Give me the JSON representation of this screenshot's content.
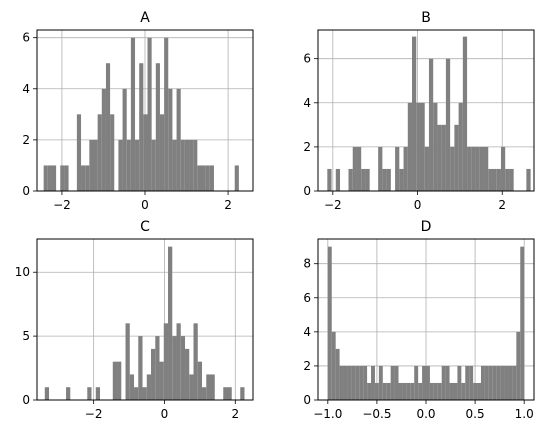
{
  "chart_data": [
    {
      "type": "bar",
      "title": "A",
      "xlim": [
        -2.6,
        2.6
      ],
      "ylim": [
        0,
        6.3
      ],
      "xticks": [
        -2,
        0,
        2
      ],
      "yticks": [
        0,
        2,
        4,
        6
      ],
      "grid": true,
      "bin_edges": [
        -2.44,
        -2.34,
        -2.24,
        -2.14,
        -2.04,
        -1.94,
        -1.84,
        -1.74,
        -1.64,
        -1.54,
        -1.44,
        -1.34,
        -1.24,
        -1.14,
        -1.04,
        -0.94,
        -0.84,
        -0.74,
        -0.64,
        -0.54,
        -0.44,
        -0.34,
        -0.24,
        -0.14,
        -0.04,
        0.06,
        0.16,
        0.26,
        0.36,
        0.46,
        0.56,
        0.66,
        0.76,
        0.86,
        0.96,
        1.06,
        1.16,
        1.26,
        1.36,
        1.46,
        1.56,
        1.66,
        1.76,
        1.86,
        1.96,
        2.06,
        2.16,
        2.26,
        2.36
      ],
      "counts": [
        1,
        1,
        1,
        0,
        1,
        1,
        0,
        0,
        3,
        1,
        1,
        2,
        2,
        3,
        4,
        5,
        3,
        0,
        2,
        4,
        2,
        6,
        2,
        5,
        3,
        6,
        2,
        5,
        3,
        6,
        4,
        2,
        4,
        2,
        2,
        2,
        2,
        1,
        1,
        1,
        1,
        0,
        0,
        0,
        0,
        0,
        1,
        0
      ]
    },
    {
      "type": "bar",
      "title": "B",
      "xlim": [
        -2.35,
        2.75
      ],
      "ylim": [
        0,
        7.3
      ],
      "xticks": [
        -2,
        0,
        2
      ],
      "yticks": [
        0,
        2,
        4,
        6
      ],
      "grid": true,
      "bin_edges": [
        -2.13,
        -2.03,
        -1.93,
        -1.83,
        -1.73,
        -1.63,
        -1.53,
        -1.43,
        -1.33,
        -1.23,
        -1.13,
        -1.03,
        -0.93,
        -0.83,
        -0.73,
        -0.63,
        -0.53,
        -0.43,
        -0.33,
        -0.23,
        -0.13,
        -0.03,
        0.07,
        0.17,
        0.27,
        0.37,
        0.47,
        0.57,
        0.67,
        0.77,
        0.87,
        0.97,
        1.07,
        1.17,
        1.27,
        1.37,
        1.47,
        1.57,
        1.67,
        1.77,
        1.87,
        1.97,
        2.07,
        2.17,
        2.27,
        2.37,
        2.47,
        2.57,
        2.67
      ],
      "counts": [
        1,
        0,
        1,
        0,
        0,
        1,
        2,
        2,
        1,
        1,
        0,
        0,
        2,
        1,
        1,
        0,
        2,
        1,
        2,
        4,
        7,
        4,
        4,
        2,
        6,
        4,
        3,
        3,
        6,
        2,
        3,
        4,
        7,
        2,
        2,
        2,
        2,
        2,
        1,
        1,
        1,
        2,
        1,
        1,
        0,
        0,
        0,
        1
      ]
    },
    {
      "type": "bar",
      "title": "C",
      "xlim": [
        -3.6,
        2.5
      ],
      "ylim": [
        0,
        12.6
      ],
      "xticks": [
        -2,
        0,
        2
      ],
      "yticks": [
        0,
        5,
        10
      ],
      "grid": true,
      "bin_edges": [
        -3.38,
        -3.26,
        -3.14,
        -3.02,
        -2.9,
        -2.78,
        -2.66,
        -2.54,
        -2.42,
        -2.3,
        -2.18,
        -2.06,
        -1.94,
        -1.82,
        -1.7,
        -1.58,
        -1.46,
        -1.34,
        -1.22,
        -1.1,
        -0.98,
        -0.86,
        -0.74,
        -0.62,
        -0.5,
        -0.38,
        -0.26,
        -0.14,
        -0.02,
        0.1,
        0.22,
        0.34,
        0.46,
        0.58,
        0.7,
        0.82,
        0.94,
        1.06,
        1.18,
        1.3,
        1.42,
        1.54,
        1.66,
        1.78,
        1.9,
        2.02,
        2.14,
        2.26
      ],
      "counts": [
        1,
        0,
        0,
        0,
        0,
        1,
        0,
        0,
        0,
        0,
        1,
        0,
        1,
        0,
        0,
        0,
        3,
        3,
        0,
        6,
        2,
        1,
        5,
        1,
        2,
        4,
        5,
        3,
        6,
        12,
        5,
        6,
        5,
        4,
        2,
        6,
        3,
        1,
        2,
        2,
        0,
        0,
        1,
        1,
        0,
        0,
        1
      ]
    },
    {
      "type": "bar",
      "title": "D",
      "xlim": [
        -1.1,
        1.1
      ],
      "ylim": [
        0,
        9.45
      ],
      "xticks": [
        -1.0,
        -0.5,
        0.0,
        0.5,
        1.0
      ],
      "xtick_labels": [
        "−1.0",
        "−0.5",
        "0.0",
        "0.5",
        "1.0"
      ],
      "yticks": [
        0,
        2,
        4,
        6,
        8
      ],
      "grid": true,
      "bin_edges": [
        -1.0,
        -0.96,
        -0.92,
        -0.88,
        -0.84,
        -0.8,
        -0.76,
        -0.72,
        -0.68,
        -0.64,
        -0.6,
        -0.56,
        -0.52,
        -0.48,
        -0.44,
        -0.4,
        -0.36,
        -0.32,
        -0.28,
        -0.24,
        -0.2,
        -0.16,
        -0.12,
        -0.08,
        -0.04,
        0.0,
        0.04,
        0.08,
        0.12,
        0.16,
        0.2,
        0.24,
        0.28,
        0.32,
        0.36,
        0.4,
        0.44,
        0.48,
        0.52,
        0.56,
        0.6,
        0.64,
        0.68,
        0.72,
        0.76,
        0.8,
        0.84,
        0.88,
        0.92,
        0.96,
        1.0
      ],
      "counts": [
        9,
        4,
        3,
        2,
        2,
        2,
        2,
        2,
        2,
        2,
        1,
        2,
        1,
        2,
        1,
        1,
        2,
        2,
        1,
        1,
        1,
        1,
        2,
        1,
        2,
        2,
        1,
        1,
        1,
        2,
        2,
        1,
        1,
        2,
        1,
        2,
        2,
        1,
        1,
        2,
        2,
        2,
        2,
        2,
        2,
        2,
        2,
        2,
        4,
        9
      ]
    }
  ]
}
